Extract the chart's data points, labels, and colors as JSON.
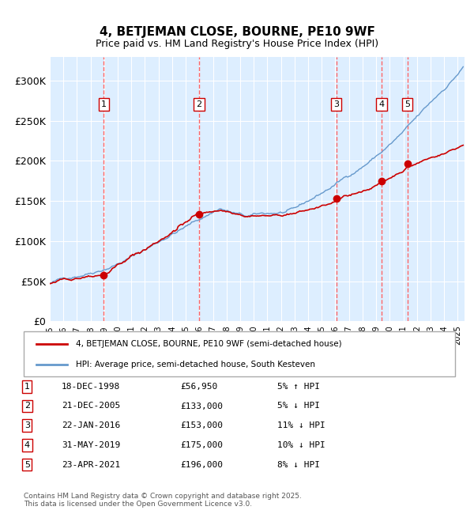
{
  "title": "4, BETJEMAN CLOSE, BOURNE, PE10 9WF",
  "subtitle": "Price paid vs. HM Land Registry's House Price Index (HPI)",
  "xmin": 1995.0,
  "xmax": 2025.5,
  "ymin": 0,
  "ymax": 330000,
  "yticks": [
    0,
    50000,
    100000,
    150000,
    200000,
    250000,
    300000
  ],
  "ytick_labels": [
    "£0",
    "£50K",
    "£100K",
    "£150K",
    "£200K",
    "£250K",
    "£300K"
  ],
  "xticks": [
    1995,
    1996,
    1997,
    1998,
    1999,
    2000,
    2001,
    2002,
    2003,
    2004,
    2005,
    2006,
    2007,
    2008,
    2009,
    2010,
    2011,
    2012,
    2013,
    2014,
    2015,
    2016,
    2017,
    2018,
    2019,
    2020,
    2021,
    2022,
    2023,
    2024,
    2025
  ],
  "hpi_color": "#6699cc",
  "price_color": "#cc0000",
  "marker_color": "#cc0000",
  "bg_color": "#ddeeff",
  "grid_color": "#ffffff",
  "vline_color": "#ff6666",
  "sales": [
    {
      "num": 1,
      "date_str": "18-DEC-1998",
      "date_x": 1998.96,
      "price": 56950
    },
    {
      "num": 2,
      "date_str": "21-DEC-2005",
      "date_x": 2005.97,
      "price": 133000
    },
    {
      "num": 3,
      "date_str": "22-JAN-2016",
      "date_x": 2016.06,
      "price": 153000
    },
    {
      "num": 4,
      "date_str": "31-MAY-2019",
      "date_x": 2019.41,
      "price": 175000
    },
    {
      "num": 5,
      "date_str": "23-APR-2021",
      "date_x": 2021.31,
      "price": 196000
    }
  ],
  "legend_line1": "4, BETJEMAN CLOSE, BOURNE, PE10 9WF (semi-detached house)",
  "legend_line2": "HPI: Average price, semi-detached house, South Kesteven",
  "footnote": "Contains HM Land Registry data © Crown copyright and database right 2025.\nThis data is licensed under the Open Government Licence v3.0.",
  "table_rows": [
    {
      "num": 1,
      "date": "18-DEC-1998",
      "price": "£56,950",
      "pct": "5% ↑ HPI"
    },
    {
      "num": 2,
      "date": "21-DEC-2005",
      "price": "£133,000",
      "pct": "5% ↓ HPI"
    },
    {
      "num": 3,
      "date": "22-JAN-2016",
      "price": "£153,000",
      "pct": "11% ↓ HPI"
    },
    {
      "num": 4,
      "date": "31-MAY-2019",
      "price": "£175,000",
      "pct": "10% ↓ HPI"
    },
    {
      "num": 5,
      "date": "23-APR-2021",
      "price": "£196,000",
      "pct": "8% ↓ HPI"
    }
  ]
}
